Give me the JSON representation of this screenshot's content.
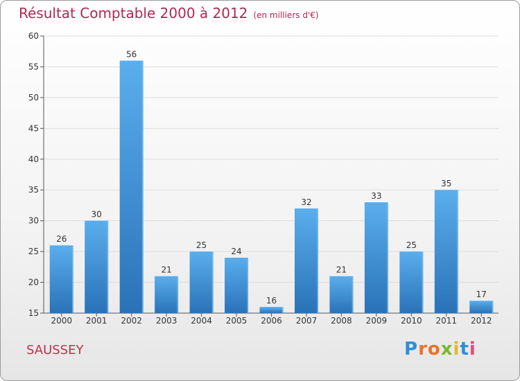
{
  "chart_data": {
    "type": "bar",
    "title": "Résultat Comptable 2000 à 2012",
    "subtitle": "(en milliers d'€)",
    "categories": [
      "2000",
      "2001",
      "2002",
      "2003",
      "2004",
      "2005",
      "2006",
      "2007",
      "2008",
      "2009",
      "2010",
      "2011",
      "2012"
    ],
    "values": [
      26,
      30,
      56,
      21,
      25,
      24,
      16,
      32,
      21,
      33,
      25,
      35,
      17
    ],
    "ylim": [
      15,
      60
    ],
    "yticks": [
      15,
      20,
      25,
      30,
      35,
      40,
      45,
      50,
      55,
      60
    ],
    "grid": true,
    "bar_color": "#3d8fd6",
    "bar_color_light": "#5aaeec",
    "bar_color_dark": "#2a72b8"
  },
  "footer": {
    "commune": "SAUSSEY",
    "logo": "Proxiti",
    "logo_colors": [
      "#2e8ed6",
      "#e8742a",
      "#e8742a",
      "#78b82e",
      "#e8b42a",
      "#2e8ed6",
      "#e84a7a"
    ]
  },
  "colors": {
    "title": "#b0284f",
    "commune": "#c0304a",
    "axis": "#555555",
    "grid": "#dddddd"
  }
}
